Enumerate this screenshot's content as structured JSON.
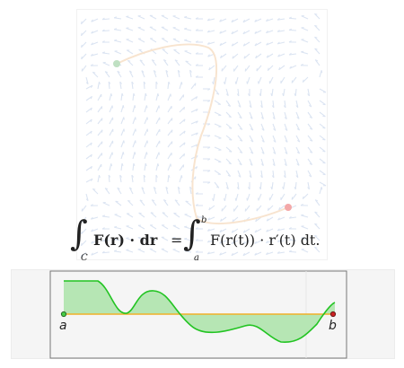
{
  "formula": {
    "lhs_lower": "C",
    "lhs_integrand": "F(r) · dr",
    "equals": "=",
    "rhs_lower": "a",
    "rhs_upper": "b",
    "rhs_integrand": "F(r(t)) · r′(t) dt."
  },
  "endpoints": {
    "start_label": "a",
    "end_label": "b"
  },
  "colors": {
    "arrow": "#dbe4f2",
    "curve": "#f8e4cf",
    "start_point": "#bfe0c2",
    "end_point": "#f3a8a8",
    "fill": "#b6e6b4",
    "plot_line": "#22c422",
    "axis": "#f0b028",
    "plot_bg": "#f1f1f1",
    "frame": "#777777"
  },
  "icons": {
    "start": "green-dot-icon",
    "end": "red-dot-icon"
  }
}
